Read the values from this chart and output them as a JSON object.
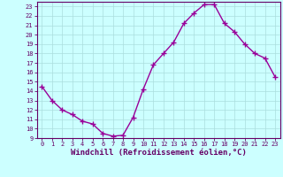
{
  "x": [
    0,
    1,
    2,
    3,
    4,
    5,
    6,
    7,
    8,
    9,
    10,
    11,
    12,
    13,
    14,
    15,
    16,
    17,
    18,
    19,
    20,
    21,
    22,
    23
  ],
  "y": [
    14.5,
    13.0,
    12.0,
    11.5,
    10.8,
    10.5,
    9.5,
    9.2,
    9.3,
    11.2,
    14.2,
    16.8,
    18.0,
    19.2,
    21.2,
    22.3,
    23.2,
    23.2,
    21.2,
    20.3,
    19.0,
    18.0,
    17.5,
    15.5
  ],
  "line_color": "#990099",
  "marker": "+",
  "markersize": 4,
  "linewidth": 1.0,
  "xlim": [
    -0.5,
    23.5
  ],
  "ylim": [
    9,
    23.5
  ],
  "yticks": [
    9,
    10,
    11,
    12,
    13,
    14,
    15,
    16,
    17,
    18,
    19,
    20,
    21,
    22,
    23
  ],
  "xticks": [
    0,
    1,
    2,
    3,
    4,
    5,
    6,
    7,
    8,
    9,
    10,
    11,
    12,
    13,
    14,
    15,
    16,
    17,
    18,
    19,
    20,
    21,
    22,
    23
  ],
  "xlabel": "Windchill (Refroidissement éolien,°C)",
  "bg_color": "#ccffff",
  "grid_color": "#aadddd",
  "spine_color": "#660066",
  "tick_label_color": "#660066",
  "xlabel_color": "#660066",
  "tick_fontsize": 5.0,
  "xlabel_fontsize": 6.5
}
